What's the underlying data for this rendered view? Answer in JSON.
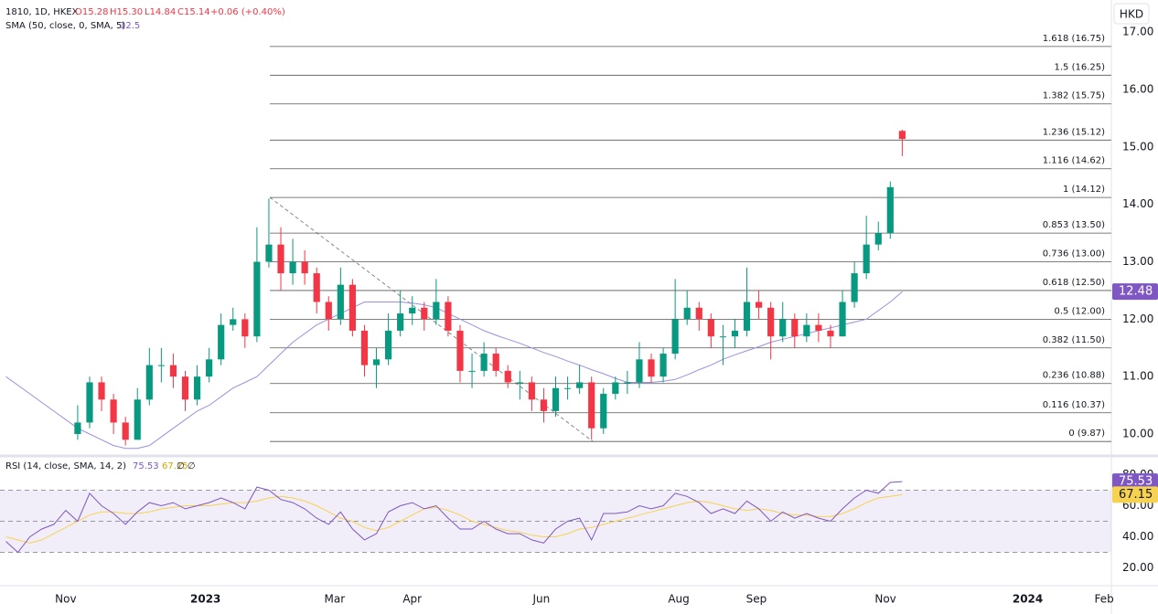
{
  "chart_data": {
    "type": "candlestick",
    "header": {
      "symbol": "1810, 1D, HKEX",
      "open": "O15.28",
      "high": "H15.30",
      "low": "L14.84",
      "close": "C15.14",
      "change": "+0.06 (+0.40%)"
    },
    "currency": "HKD",
    "up_color": "#089981",
    "down_color": "#f23645",
    "xlim": [
      -0.5,
      92.5
    ],
    "xticks": [
      {
        "value": 5,
        "label": "Nov"
      },
      {
        "value": 16.7,
        "label": "2023"
      },
      {
        "value": 27.5,
        "label": "Mar"
      },
      {
        "value": 34,
        "label": "Apr"
      },
      {
        "value": 44.8,
        "label": "Jun"
      },
      {
        "value": 56.3,
        "label": "Aug"
      },
      {
        "value": 62.8,
        "label": "Sep"
      },
      {
        "value": 73.6,
        "label": "Nov"
      },
      {
        "value": 85.5,
        "label": "2024"
      },
      {
        "value": 91.9,
        "label": "Feb"
      }
    ],
    "ylim": [
      9.65,
      17.56
    ],
    "yticks": [
      {
        "value": 10,
        "label": "10.00"
      },
      {
        "value": 11,
        "label": "11.00"
      },
      {
        "value": 12,
        "label": "12.00"
      },
      {
        "value": 13,
        "label": "13.00"
      },
      {
        "value": 14,
        "label": "14.00"
      },
      {
        "value": 15,
        "label": "15.00"
      },
      {
        "value": 16,
        "label": "16.00"
      },
      {
        "value": 17,
        "label": "17.00"
      }
    ],
    "candles": [
      null,
      null,
      null,
      null,
      null,
      null,
      [
        10.0,
        10.5,
        9.9,
        10.2
      ],
      [
        10.2,
        11.0,
        10.1,
        10.9
      ],
      [
        10.9,
        11.0,
        10.4,
        10.6
      ],
      [
        10.6,
        10.7,
        10.0,
        10.2
      ],
      [
        10.2,
        10.3,
        9.8,
        9.9
      ],
      [
        9.9,
        10.8,
        9.9,
        10.6
      ],
      [
        10.6,
        11.5,
        10.5,
        11.2
      ],
      [
        11.2,
        11.5,
        10.9,
        11.2
      ],
      [
        11.2,
        11.4,
        10.8,
        11.0
      ],
      [
        11.0,
        11.1,
        10.4,
        10.6
      ],
      [
        10.6,
        11.2,
        10.5,
        11.0
      ],
      [
        11.0,
        11.5,
        10.9,
        11.3
      ],
      [
        11.3,
        12.1,
        11.2,
        11.9
      ],
      [
        11.9,
        12.2,
        11.8,
        12.0
      ],
      [
        12.0,
        12.1,
        11.5,
        11.7
      ],
      [
        11.7,
        13.6,
        11.6,
        13.0
      ],
      [
        13.0,
        14.1,
        12.9,
        13.3
      ],
      [
        13.3,
        13.6,
        12.5,
        12.8
      ],
      [
        12.8,
        13.4,
        12.6,
        13.0
      ],
      [
        13.0,
        13.2,
        12.6,
        12.8
      ],
      [
        12.8,
        12.9,
        12.1,
        12.3
      ],
      [
        12.3,
        12.4,
        11.8,
        12.0
      ],
      [
        12.0,
        12.9,
        11.9,
        12.6
      ],
      [
        12.6,
        12.7,
        11.7,
        11.8
      ],
      [
        11.8,
        11.9,
        11.0,
        11.2
      ],
      [
        11.2,
        11.5,
        10.8,
        11.3
      ],
      [
        11.3,
        12.1,
        11.2,
        11.8
      ],
      [
        11.8,
        12.5,
        11.7,
        12.1
      ],
      [
        12.1,
        12.4,
        11.9,
        12.2
      ],
      [
        12.2,
        12.3,
        11.8,
        12.0
      ],
      [
        12.0,
        12.7,
        11.9,
        12.3
      ],
      [
        12.3,
        12.4,
        11.7,
        11.8
      ],
      [
        11.8,
        11.9,
        10.9,
        11.1
      ],
      [
        11.1,
        11.4,
        10.8,
        11.1
      ],
      [
        11.1,
        11.6,
        11.0,
        11.4
      ],
      [
        11.4,
        11.5,
        11.0,
        11.1
      ],
      [
        11.1,
        11.2,
        10.8,
        10.9
      ],
      [
        10.9,
        11.1,
        10.6,
        10.9
      ],
      [
        10.9,
        11.0,
        10.4,
        10.6
      ],
      [
        10.6,
        10.8,
        10.2,
        10.4
      ],
      [
        10.4,
        11.0,
        10.3,
        10.8
      ],
      [
        10.8,
        11.0,
        10.6,
        10.8
      ],
      [
        10.8,
        11.2,
        10.7,
        10.9
      ],
      [
        10.9,
        11.0,
        9.9,
        10.1
      ],
      [
        10.1,
        10.8,
        10.0,
        10.7
      ],
      [
        10.7,
        11.0,
        10.6,
        10.9
      ],
      [
        10.9,
        11.1,
        10.7,
        10.9
      ],
      [
        10.9,
        11.6,
        10.8,
        11.3
      ],
      [
        11.3,
        11.4,
        10.9,
        11.0
      ],
      [
        11.0,
        11.5,
        10.9,
        11.4
      ],
      [
        11.4,
        12.7,
        11.3,
        12.0
      ],
      [
        12.0,
        12.5,
        11.9,
        12.2
      ],
      [
        12.2,
        12.3,
        11.8,
        12.0
      ],
      [
        12.0,
        12.1,
        11.5,
        11.7
      ],
      [
        11.7,
        11.9,
        11.2,
        11.7
      ],
      [
        11.7,
        12.0,
        11.5,
        11.8
      ],
      [
        11.8,
        12.9,
        11.7,
        12.3
      ],
      [
        12.3,
        12.5,
        12.0,
        12.2
      ],
      [
        12.2,
        12.3,
        11.3,
        11.7
      ],
      [
        11.7,
        12.3,
        11.6,
        12.0
      ],
      [
        12.0,
        12.1,
        11.5,
        11.7
      ],
      [
        11.7,
        12.1,
        11.6,
        11.9
      ],
      [
        11.9,
        12.1,
        11.6,
        11.8
      ],
      [
        11.8,
        11.9,
        11.5,
        11.7
      ],
      [
        11.7,
        12.5,
        11.7,
        12.3
      ],
      [
        12.3,
        13.0,
        12.2,
        12.8
      ],
      [
        12.8,
        13.8,
        12.7,
        13.3
      ],
      [
        13.3,
        13.7,
        13.2,
        13.5
      ],
      [
        13.5,
        14.4,
        13.4,
        14.3
      ],
      [
        15.28,
        15.3,
        14.84,
        15.14
      ]
    ],
    "sma": {
      "name": "SMA (50, close, 0, SMA, 5)",
      "legend_value": "12.5",
      "last_label": "12.48",
      "color": "#9b8fe0",
      "badge_color": "#7e57c2",
      "values": [
        11.0,
        10.85,
        10.7,
        10.55,
        10.4,
        10.25,
        10.1,
        10.0,
        9.9,
        9.8,
        9.75,
        9.75,
        9.8,
        9.95,
        10.1,
        10.25,
        10.4,
        10.5,
        10.65,
        10.8,
        10.9,
        11.0,
        11.2,
        11.4,
        11.6,
        11.75,
        11.9,
        12.0,
        12.1,
        12.2,
        12.3,
        12.3,
        12.3,
        12.3,
        12.28,
        12.25,
        12.2,
        12.1,
        12.0,
        11.9,
        11.8,
        11.72,
        11.65,
        11.58,
        11.5,
        11.42,
        11.35,
        11.27,
        11.2,
        11.12,
        11.05,
        10.97,
        10.9,
        10.9,
        10.9,
        10.92,
        10.95,
        11.03,
        11.12,
        11.2,
        11.3,
        11.38,
        11.45,
        11.52,
        11.6,
        11.65,
        11.7,
        11.75,
        11.8,
        11.85,
        11.9,
        11.95,
        12.0,
        12.15,
        12.3,
        12.48
      ]
    },
    "fib_levels": [
      {
        "value": 16.75,
        "label": "1.618 (16.75)"
      },
      {
        "value": 16.25,
        "label": "1.5 (16.25)"
      },
      {
        "value": 15.75,
        "label": "1.382 (15.75)"
      },
      {
        "value": 15.12,
        "label": "1.236 (15.12)"
      },
      {
        "value": 14.62,
        "label": "1.116 (14.62)"
      },
      {
        "value": 14.12,
        "label": "1 (14.12)"
      },
      {
        "value": 13.5,
        "label": "0.853 (13.50)"
      },
      {
        "value": 13.0,
        "label": "0.736 (13.00)"
      },
      {
        "value": 12.5,
        "label": "0.618 (12.50)"
      },
      {
        "value": 12.0,
        "label": "0.5 (12.00)"
      },
      {
        "value": 11.5,
        "label": "0.382 (11.50)"
      },
      {
        "value": 10.88,
        "label": "0.236 (10.88)"
      },
      {
        "value": 10.37,
        "label": "0.116 (10.37)"
      },
      {
        "value": 9.87,
        "label": "0 (9.87)"
      }
    ],
    "rsi": {
      "name": "RSI (14, close, SMA, 14, 2)",
      "value_label": "75.53",
      "sma_label": "67.15",
      "empty": "∅ ∅",
      "color": "#7e57c2",
      "sma_color": "#f7d250",
      "ylim": [
        9.1,
        90.9
      ],
      "yticks": [
        {
          "value": 20,
          "label": "20.00"
        },
        {
          "value": 40,
          "label": "40.00"
        },
        {
          "value": 60,
          "label": "60.00"
        },
        {
          "value": 80,
          "label": "80.00"
        }
      ],
      "bands": [
        70,
        50,
        30
      ],
      "values": [
        37,
        30,
        40,
        45,
        48,
        57,
        50,
        68,
        60,
        55,
        48,
        56,
        62,
        60,
        62,
        58,
        60,
        62,
        65,
        62,
        58,
        72,
        70,
        64,
        62,
        58,
        52,
        48,
        56,
        45,
        38,
        42,
        56,
        60,
        62,
        58,
        60,
        52,
        45,
        45,
        50,
        45,
        42,
        42,
        38,
        36,
        45,
        50,
        52,
        38,
        55,
        55,
        56,
        60,
        58,
        60,
        68,
        66,
        62,
        55,
        58,
        55,
        63,
        58,
        50,
        56,
        52,
        55,
        52,
        50,
        58,
        65,
        70,
        68,
        75,
        75.53
      ],
      "sma": [
        40,
        38,
        36,
        38,
        42,
        46,
        50,
        54,
        56,
        56,
        55,
        55,
        56,
        58,
        59,
        60,
        60,
        60,
        61,
        62,
        62,
        63,
        65,
        66,
        65,
        63,
        60,
        56,
        52,
        50,
        46,
        44,
        46,
        50,
        54,
        58,
        59,
        57,
        54,
        50,
        48,
        46,
        44,
        43,
        41,
        40,
        40,
        42,
        45,
        46,
        48,
        50,
        52,
        54,
        56,
        58,
        60,
        62,
        63,
        62,
        60,
        58,
        57,
        58,
        57,
        55,
        54,
        54,
        53,
        53,
        55,
        58,
        62,
        65,
        66,
        67.15
      ]
    }
  }
}
